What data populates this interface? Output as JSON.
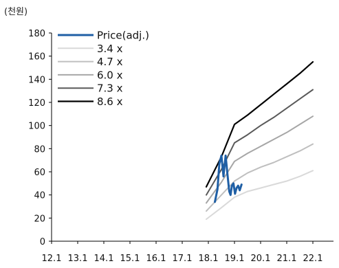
{
  "unit_label": "(천원)",
  "chart_data": {
    "type": "line",
    "ylim": [
      0,
      180
    ],
    "yticks": [
      0,
      20,
      40,
      60,
      80,
      100,
      120,
      140,
      160,
      180
    ],
    "x_tick_labels": [
      "12.1",
      "13.1",
      "14.1",
      "15.1",
      "16.1",
      "17.1",
      "18.1",
      "19.1",
      "20.1",
      "21.1",
      "22.1"
    ],
    "xlim": [
      2012.0,
      2023.0
    ],
    "grid": false,
    "legend_position": "top-left",
    "series": [
      {
        "name": "Price(adj.)",
        "color": "#1f5fa5",
        "width": 3,
        "points": [
          [
            2018.25,
            34
          ],
          [
            2018.35,
            45
          ],
          [
            2018.42,
            67
          ],
          [
            2018.5,
            74
          ],
          [
            2018.58,
            56
          ],
          [
            2018.66,
            74
          ],
          [
            2018.74,
            56
          ],
          [
            2018.8,
            43
          ],
          [
            2018.85,
            40
          ],
          [
            2018.9,
            48
          ],
          [
            2018.96,
            50
          ],
          [
            2019.02,
            41
          ],
          [
            2019.08,
            46
          ],
          [
            2019.14,
            48
          ],
          [
            2019.2,
            44
          ],
          [
            2019.27,
            49
          ]
        ]
      },
      {
        "name": "3.4 x",
        "color": "#d9d9d9",
        "width": 2,
        "points": [
          [
            2017.92,
            19
          ],
          [
            2018.5,
            29
          ],
          [
            2019.0,
            38
          ],
          [
            2019.5,
            43
          ],
          [
            2020.0,
            46
          ],
          [
            2020.5,
            49
          ],
          [
            2021.0,
            52
          ],
          [
            2021.5,
            56
          ],
          [
            2022.0,
            61
          ]
        ]
      },
      {
        "name": "4.7 x",
        "color": "#bfbfbf",
        "width": 2,
        "points": [
          [
            2017.92,
            26
          ],
          [
            2018.5,
            40
          ],
          [
            2019.0,
            52
          ],
          [
            2019.5,
            59
          ],
          [
            2020.0,
            64
          ],
          [
            2020.5,
            68
          ],
          [
            2021.0,
            73
          ],
          [
            2021.5,
            78
          ],
          [
            2022.0,
            84
          ]
        ]
      },
      {
        "name": "6.0 x",
        "color": "#a6a6a6",
        "width": 2,
        "points": [
          [
            2017.92,
            33
          ],
          [
            2018.5,
            51
          ],
          [
            2019.0,
            69
          ],
          [
            2019.5,
            76
          ],
          [
            2020.0,
            82
          ],
          [
            2020.5,
            88
          ],
          [
            2021.0,
            94
          ],
          [
            2021.5,
            101
          ],
          [
            2022.0,
            108
          ]
        ]
      },
      {
        "name": "7.3 x",
        "color": "#595959",
        "width": 2,
        "points": [
          [
            2017.92,
            40
          ],
          [
            2018.5,
            62
          ],
          [
            2019.0,
            85
          ],
          [
            2019.5,
            92
          ],
          [
            2020.0,
            100
          ],
          [
            2020.5,
            107
          ],
          [
            2021.0,
            115
          ],
          [
            2021.5,
            123
          ],
          [
            2022.0,
            131
          ]
        ]
      },
      {
        "name": "8.6 x",
        "color": "#000000",
        "width": 2.2,
        "points": [
          [
            2017.92,
            47
          ],
          [
            2018.5,
            73
          ],
          [
            2019.0,
            101
          ],
          [
            2019.5,
            109
          ],
          [
            2020.0,
            118
          ],
          [
            2020.5,
            127
          ],
          [
            2021.0,
            136
          ],
          [
            2021.5,
            145
          ],
          [
            2022.0,
            155
          ]
        ]
      }
    ]
  }
}
